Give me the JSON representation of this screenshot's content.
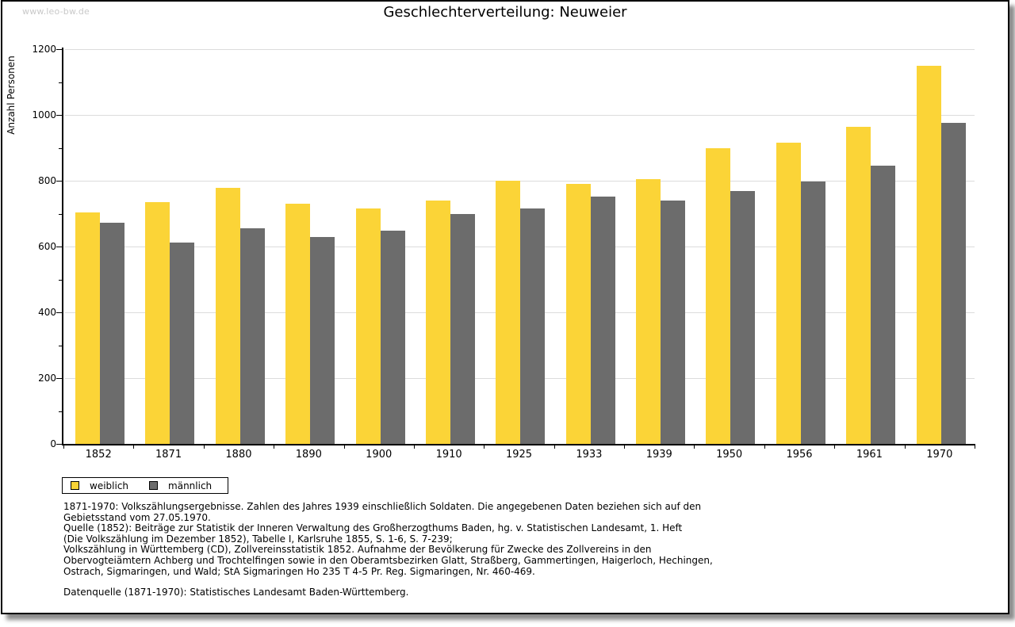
{
  "watermark": "www.leo-bw.de",
  "chart_data": {
    "type": "bar",
    "title": "Geschlechterverteilung: Neuweier",
    "xlabel": "",
    "ylabel": "Anzahl Personen",
    "ylim": [
      0,
      1200
    ],
    "y_major_step": 200,
    "y_minor_step": 100,
    "grid": true,
    "legend_position": "bottom-left",
    "categories": [
      "1852",
      "1871",
      "1880",
      "1890",
      "1900",
      "1910",
      "1925",
      "1933",
      "1939",
      "1950",
      "1956",
      "1961",
      "1970"
    ],
    "series": [
      {
        "name": "weiblich",
        "color": "#FBD437",
        "values": [
          703,
          735,
          778,
          730,
          715,
          740,
          800,
          790,
          805,
          900,
          915,
          965,
          1150
        ]
      },
      {
        "name": "männlich",
        "color": "#6C6C6C",
        "values": [
          672,
          612,
          655,
          630,
          648,
          700,
          715,
          752,
          740,
          768,
          797,
          845,
          975
        ]
      }
    ]
  },
  "colors": {
    "female_bar": "#FBD437",
    "male_bar": "#6C6C6C",
    "gridline": "#dcdcdc",
    "axis": "#000000",
    "watermark": "#c9c9c9"
  },
  "footnotes": {
    "lines": [
      "1871-1970: Volkszählungsergebnisse. Zahlen des Jahres 1939 einschließlich Soldaten. Die angegebenen Daten beziehen sich auf den",
      "Gebietsstand vom 27.05.1970.",
      "Quelle (1852): Beiträge zur Statistik der Inneren Verwaltung des Großherzogthums Baden, hg. v. Statistischen Landesamt, 1. Heft",
      "(Die Volkszählung im Dezember 1852), Tabelle I, Karlsruhe 1855, S. 1-6, S. 7-239;",
      "Volkszählung in Württemberg (CD), Zollvereinsstatistik 1852. Aufnahme der Bevölkerung für Zwecke des Zollvereins in den",
      "Obervogteiämtern Achberg und Trochtelfingen sowie in den Oberamtsbezirken Glatt, Straßberg, Gammertingen, Haigerloch, Hechingen,",
      "Ostrach, Sigmaringen, und Wald; StA Sigmaringen Ho 235 T 4-5 Pr. Reg. Sigmaringen, Nr. 460-469."
    ],
    "datasource": "Datenquelle (1871-1970): Statistisches Landesamt Baden-Württemberg."
  }
}
